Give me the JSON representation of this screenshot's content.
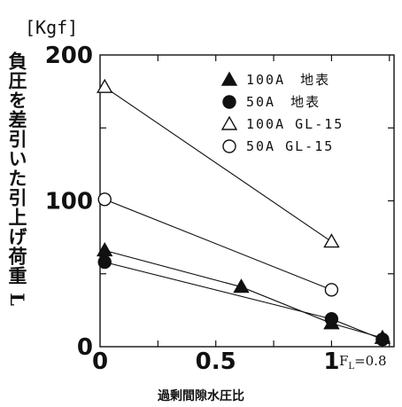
{
  "chart_data": {
    "type": "line",
    "unit": "[Kgf]",
    "ylabel": "負圧を差引いた引上げ荷重 L",
    "xlabel": "過剰間隙水圧比",
    "x_end_label": "F_L=0.8",
    "xlim": [
      0,
      1.27
    ],
    "ylim": [
      0,
      200
    ],
    "xticks": [
      0,
      0.5,
      1
    ],
    "xtick_labels": [
      "0",
      "0.5",
      "1"
    ],
    "yticks": [
      0,
      100,
      200
    ],
    "ytick_labels": [
      "0",
      "100",
      "200"
    ],
    "grid": false,
    "legend_position": "top-right",
    "series": [
      {
        "name": "100A　地表",
        "marker": "filled-triangle",
        "x": [
          0.02,
          0.61,
          1.0,
          1.22
        ],
        "y": [
          66,
          41,
          16,
          6
        ]
      },
      {
        "name": "50A　地表",
        "marker": "filled-circle",
        "x": [
          0.02,
          1.0,
          1.22
        ],
        "y": [
          58,
          19,
          5
        ]
      },
      {
        "name": "100A GL-15",
        "marker": "open-triangle",
        "x": [
          0.02,
          1.0
        ],
        "y": [
          178,
          72
        ]
      },
      {
        "name": "50A GL-15",
        "marker": "open-circle",
        "x": [
          0.02,
          1.0
        ],
        "y": [
          101,
          39
        ]
      }
    ]
  }
}
